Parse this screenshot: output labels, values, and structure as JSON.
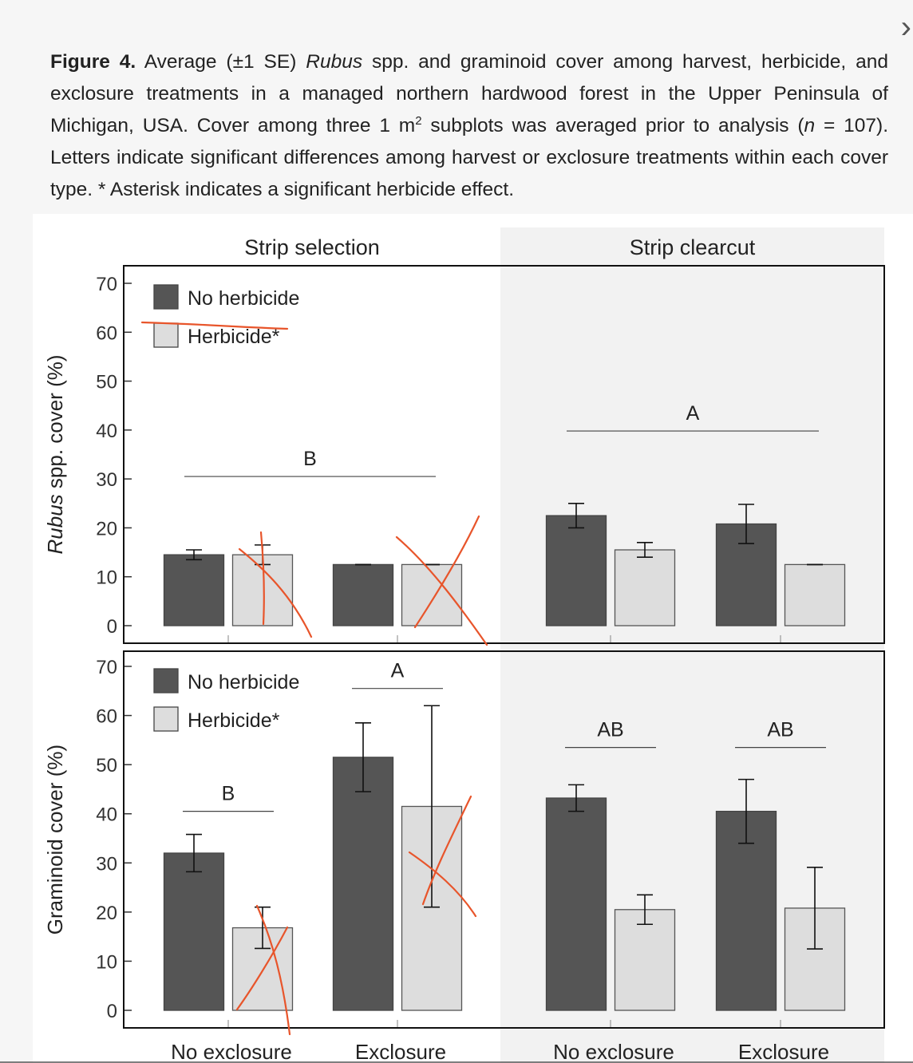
{
  "caption": {
    "label": "Figure 4.",
    "part1": " Average (±1 SE) ",
    "italic1": "Rubus",
    "part2": " spp. and graminoid cover among harvest, herbicide, and exclosure treatments in a managed northern hardwood forest in the Upper Peninsula of Michigan, USA. Cover among three 1 m",
    "sup": "2",
    "part3": " subplots was averaged prior to analysis (",
    "italic2": "n",
    "part4": " = 107). Letters indicate significant differences among harvest or exclosure treatments within each cover type. * Asterisk indicates a significant herbicide effect."
  },
  "nav": {
    "next_icon": "chevron-right-icon",
    "next_glyph": "›"
  },
  "chart_data": {
    "type": "bar",
    "facets": [
      "Strip selection",
      "Strip clearcut"
    ],
    "categories": [
      "No exclosure",
      "Exclosure"
    ],
    "legend": [
      "No herbicide",
      "Herbicide*"
    ],
    "series_colors": {
      "No herbicide": "#555555",
      "Herbicide*": "#dddddd"
    },
    "ylim": [
      0,
      70
    ],
    "yticks": [
      0,
      10,
      20,
      30,
      40,
      50,
      60,
      70
    ],
    "annotation_color": "#e8552b",
    "panels": [
      {
        "ylabel_italic": "Rubus",
        "ylabel_rest": " spp. cover (%)",
        "groups": {
          "Strip selection": {
            "No exclosure": {
              "No herbicide": {
                "mean": 14.5,
                "se": 1
              },
              "Herbicide*": {
                "mean": 14.5,
                "se": 2
              }
            },
            "Exclosure": {
              "No herbicide": {
                "mean": 12.5,
                "se": 0
              },
              "Herbicide*": {
                "mean": 12.5,
                "se": 0
              }
            }
          },
          "Strip clearcut": {
            "No exclosure": {
              "No herbicide": {
                "mean": 22.5,
                "se": 2.5
              },
              "Herbicide*": {
                "mean": 15.5,
                "se": 1.5
              }
            },
            "Exclosure": {
              "No herbicide": {
                "mean": 20.8,
                "se": 4
              },
              "Herbicide*": {
                "mean": 12.5,
                "se": 0
              }
            }
          }
        },
        "letters": [
          {
            "facet": "Strip selection",
            "label": "B",
            "y": 30.5,
            "span": "both"
          },
          {
            "facet": "Strip clearcut",
            "label": "A",
            "y": 39.8,
            "span": "both"
          }
        ]
      },
      {
        "ylabel": "Graminoid cover (%)",
        "groups": {
          "Strip selection": {
            "No exclosure": {
              "No herbicide": {
                "mean": 32,
                "se": 3.8
              },
              "Herbicide*": {
                "mean": 16.8,
                "se": 4.2
              }
            },
            "Exclosure": {
              "No herbicide": {
                "mean": 51.5,
                "se": 7
              },
              "Herbicide*": {
                "mean": 41.5,
                "se": 20.5
              }
            }
          },
          "Strip clearcut": {
            "No exclosure": {
              "No herbicide": {
                "mean": 43.2,
                "se": 2.7
              },
              "Herbicide*": {
                "mean": 20.5,
                "se": 3
              }
            },
            "Exclosure": {
              "No herbicide": {
                "mean": 40.5,
                "se": 6.5
              },
              "Herbicide*": {
                "mean": 20.8,
                "se": 8.3
              }
            }
          }
        },
        "letters": [
          {
            "facet": "Strip selection",
            "label": "B",
            "y": 40.5,
            "span": "No exclosure"
          },
          {
            "facet": "Strip selection",
            "label": "A",
            "y": 65.5,
            "span": "Exclosure"
          },
          {
            "facet": "Strip clearcut",
            "label": "AB",
            "y": 53.5,
            "span": "No exclosure"
          },
          {
            "facet": "Strip clearcut",
            "label": "AB",
            "y": 53.5,
            "span": "Exclosure"
          }
        ]
      }
    ]
  }
}
